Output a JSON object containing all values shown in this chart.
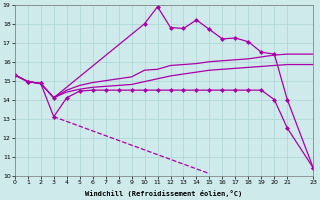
{
  "xlabel": "Windchill (Refroidissement éolien,°C)",
  "xlim": [
    0,
    23
  ],
  "ylim": [
    10,
    19
  ],
  "xticks": [
    0,
    1,
    2,
    3,
    4,
    5,
    6,
    7,
    8,
    9,
    10,
    11,
    12,
    13,
    14,
    15,
    16,
    17,
    18,
    19,
    20,
    21,
    23
  ],
  "yticks": [
    10,
    11,
    12,
    13,
    14,
    15,
    16,
    17,
    18,
    19
  ],
  "background_color": "#ceeaea",
  "grid_color": "#aad4d4",
  "line_color": "#aa00aa",
  "series": [
    {
      "x": [
        0,
        1,
        2,
        3,
        10,
        11,
        12,
        13,
        14,
        15,
        16,
        17,
        18,
        19,
        20,
        21,
        23
      ],
      "y": [
        15.3,
        14.95,
        14.85,
        14.1,
        18.0,
        18.9,
        17.8,
        17.75,
        18.2,
        17.7,
        17.2,
        17.25,
        17.05,
        16.5,
        16.4,
        14.0,
        10.4
      ],
      "marker": "D",
      "markersize": 2,
      "linewidth": 0.9,
      "linestyle": "-"
    },
    {
      "x": [
        0,
        1,
        2,
        3,
        4,
        5,
        6,
        7,
        8,
        9,
        10,
        11,
        12,
        13,
        14,
        15,
        16,
        17,
        18,
        19,
        20,
        21,
        23
      ],
      "y": [
        15.3,
        14.95,
        14.85,
        14.1,
        14.5,
        14.75,
        14.9,
        15.0,
        15.1,
        15.2,
        15.55,
        15.6,
        15.8,
        15.85,
        15.9,
        16.0,
        16.05,
        16.1,
        16.15,
        16.25,
        16.35,
        16.4,
        16.4
      ],
      "marker": null,
      "markersize": 0,
      "linewidth": 0.9,
      "linestyle": "-"
    },
    {
      "x": [
        0,
        1,
        2,
        3,
        4,
        5,
        6,
        7,
        8,
        9,
        10,
        11,
        12,
        13,
        14,
        15,
        16,
        17,
        18,
        19,
        20,
        21,
        23
      ],
      "y": [
        15.3,
        14.95,
        14.85,
        14.1,
        14.4,
        14.55,
        14.65,
        14.7,
        14.75,
        14.8,
        14.95,
        15.1,
        15.25,
        15.35,
        15.45,
        15.55,
        15.6,
        15.65,
        15.7,
        15.75,
        15.8,
        15.85,
        15.85
      ],
      "marker": null,
      "markersize": 0,
      "linewidth": 0.9,
      "linestyle": "-"
    },
    {
      "x": [
        0,
        1,
        2,
        3,
        4,
        5,
        6,
        7,
        8,
        9,
        10,
        11,
        12,
        13,
        14,
        15,
        16,
        17,
        18,
        19,
        20,
        21,
        23
      ],
      "y": [
        15.3,
        14.95,
        14.85,
        13.1,
        14.1,
        14.45,
        14.5,
        14.5,
        14.5,
        14.5,
        14.5,
        14.5,
        14.5,
        14.5,
        14.5,
        14.5,
        14.5,
        14.5,
        14.5,
        14.5,
        14.0,
        12.5,
        10.4
      ],
      "marker": "D",
      "markersize": 2,
      "linewidth": 0.9,
      "linestyle": "-"
    },
    {
      "x": [
        3,
        4,
        5,
        6,
        7,
        8,
        9,
        10,
        11,
        12,
        13,
        14,
        15,
        16,
        17,
        18,
        19,
        20,
        21,
        23
      ],
      "y": [
        13.1,
        12.85,
        12.6,
        12.35,
        12.1,
        11.85,
        11.6,
        11.35,
        11.1,
        10.85,
        10.6,
        10.35,
        10.1,
        null,
        null,
        null,
        null,
        null,
        null,
        null
      ],
      "marker": null,
      "markersize": 0,
      "linewidth": 0.9,
      "linestyle": "--"
    }
  ]
}
